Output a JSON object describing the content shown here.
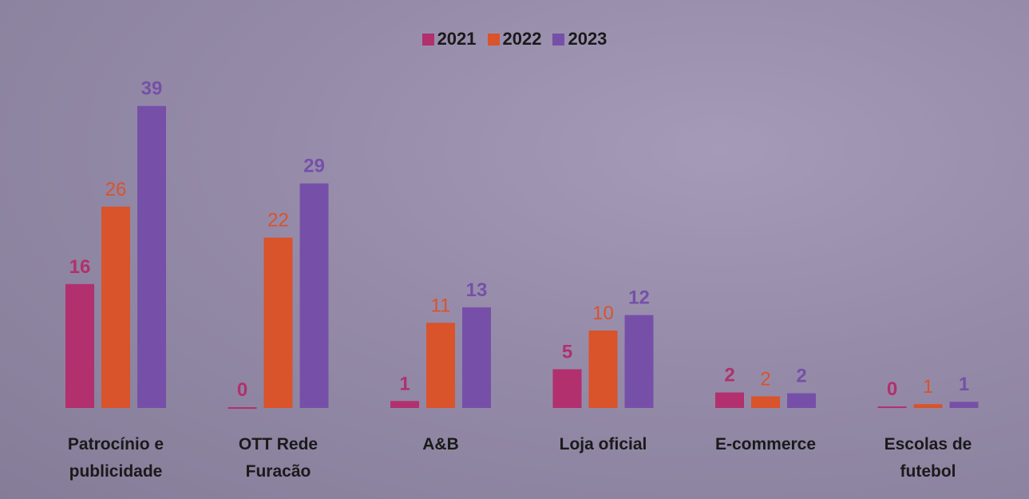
{
  "chart_data": {
    "type": "bar",
    "categories": [
      "Patrocínio e publicidade",
      "OTT Rede Furacão",
      "A&B",
      "Loja oficial",
      "E-commerce",
      "Escolas de futebol"
    ],
    "series": [
      {
        "name": "2021",
        "color": "#b1306d",
        "values": [
          16,
          0.1,
          0.9,
          5,
          2,
          0.2
        ],
        "value_labels": [
          "16",
          "0",
          "1",
          "5",
          "2",
          "0"
        ]
      },
      {
        "name": "2022",
        "color": "#d9532b",
        "values": [
          26,
          22,
          11,
          10,
          1.5,
          0.5
        ],
        "value_labels": [
          "26",
          "22",
          "11",
          "10",
          "2",
          "1"
        ]
      },
      {
        "name": "2023",
        "color": "#7650a8",
        "values": [
          39,
          29,
          13,
          12,
          1.9,
          0.8
        ],
        "value_labels": [
          "39",
          "29",
          "13",
          "12",
          "2",
          "1"
        ]
      }
    ],
    "ylim": [
      0,
      40
    ],
    "legend": "top"
  }
}
